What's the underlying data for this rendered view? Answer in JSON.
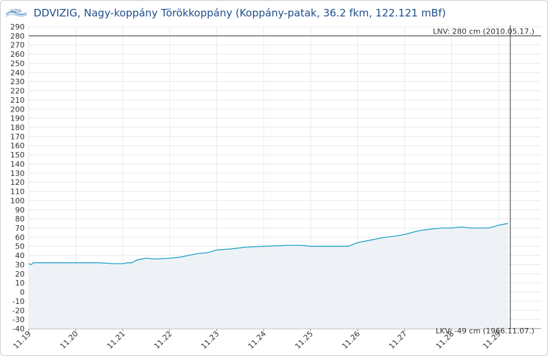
{
  "header": {
    "title": "DDVIZIG, Nagy-koppány Törökkoppány (Koppány-patak, 36.2 fkm, 122.121 mBf)",
    "logo_text": "VIZIG"
  },
  "chart_data": {
    "type": "area",
    "ylim": [
      -40,
      290
    ],
    "ytick_step": 10,
    "x_tick_labels": [
      "11.19",
      "11.20",
      "11.21",
      "11.22",
      "11.23",
      "11.24",
      "11.25",
      "11.26",
      "11.27",
      "11.28",
      "11.29"
    ],
    "x_range_days": [
      0,
      10.25
    ],
    "series": [
      {
        "x": [
          0,
          0.05,
          0.1,
          0.5,
          1.0,
          1.5,
          1.8,
          1.9,
          2.0,
          2.1,
          2.2,
          2.3,
          2.5,
          2.7,
          3.0,
          3.2,
          3.4,
          3.6,
          3.8,
          4.0,
          4.3,
          4.6,
          5.0,
          5.5,
          5.8,
          6.0,
          6.5,
          6.8,
          7.0,
          7.2,
          7.4,
          7.6,
          7.8,
          8.0,
          8.3,
          8.6,
          8.8,
          9.0,
          9.2,
          9.4,
          9.6,
          9.8,
          10.0,
          10.2
        ],
        "y": [
          31,
          30,
          32,
          32,
          32,
          32,
          31,
          31,
          31,
          32,
          32,
          35,
          37,
          36,
          37,
          38,
          40,
          42,
          43,
          46,
          47,
          49,
          50,
          51,
          51,
          50,
          50,
          50,
          54,
          56,
          58,
          60,
          61,
          63,
          67,
          69,
          70,
          70,
          71,
          70,
          70,
          70,
          73,
          75
        ],
        "color": "#1ea1c8",
        "fill": "#eef2f7"
      }
    ],
    "annotations": {
      "lnv": {
        "label": "LNV: 280 cm (2010.05.17.)",
        "value": 280
      },
      "lkv": {
        "label": "LKV: -49 cm (1966.11.07.)",
        "value": -49
      }
    },
    "current_x": 10.25,
    "grid": true
  }
}
